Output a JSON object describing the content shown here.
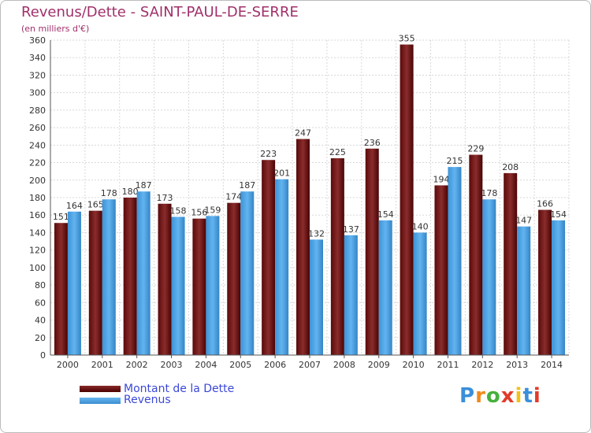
{
  "chart_data": {
    "type": "bar",
    "title": "Revenus/Dette - SAINT-PAUL-DE-SERRE",
    "subtitle": "(en milliers d'€)",
    "categories": [
      "2000",
      "2001",
      "2002",
      "2003",
      "2004",
      "2005",
      "2006",
      "2007",
      "2008",
      "2009",
      "2010",
      "2011",
      "2012",
      "2013",
      "2014"
    ],
    "series": [
      {
        "name": "Montant de la Dette",
        "color": "#6b1010",
        "values": [
          151,
          165,
          180,
          173,
          156,
          174,
          223,
          247,
          225,
          236,
          355,
          194,
          229,
          208,
          166
        ]
      },
      {
        "name": "Revenus",
        "color": "#4aa3e6",
        "values": [
          164,
          178,
          187,
          158,
          159,
          187,
          201,
          132,
          137,
          154,
          140,
          215,
          178,
          147,
          154
        ]
      }
    ],
    "yticks": [
      0,
      20,
      40,
      60,
      80,
      100,
      120,
      140,
      160,
      180,
      200,
      220,
      240,
      260,
      280,
      300,
      320,
      340,
      360
    ],
    "ylim": [
      0,
      360
    ],
    "grid": true,
    "xlabel": "",
    "ylabel": ""
  },
  "legend": {
    "debt_label": "Montant de la Dette",
    "revenue_label": "Revenus"
  },
  "logo": {
    "letters": [
      "P",
      "r",
      "o",
      "x",
      "i",
      "t",
      "i"
    ],
    "colors": [
      "#3a8fd9",
      "#f08a1c",
      "#46b03c",
      "#e23b2a",
      "#f2c21b",
      "#3a8fd9",
      "#e23b2a"
    ]
  }
}
